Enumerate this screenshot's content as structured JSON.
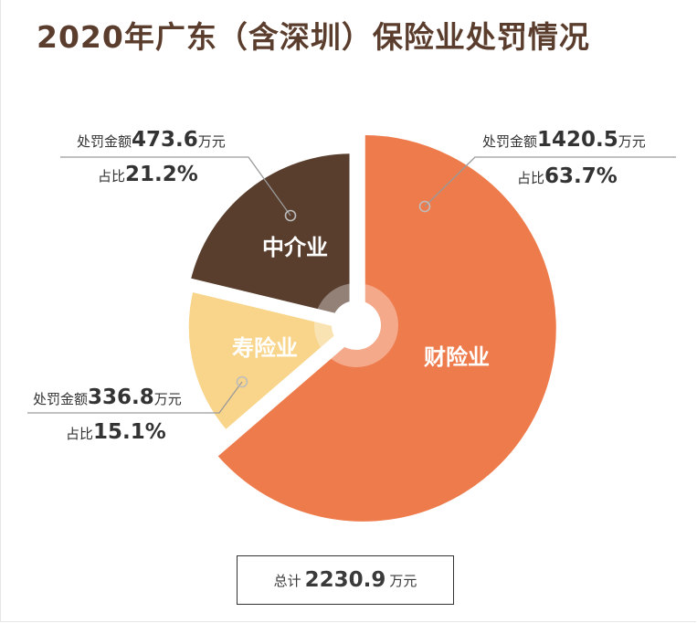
{
  "title": "2020年广东（含深圳）保险业处罚情况",
  "chart_data": {
    "type": "pie",
    "unit": "万元",
    "slices": [
      {
        "name": "财险业",
        "value": 1420.5,
        "share": "63.7%",
        "color": "#ee7b4c"
      },
      {
        "name": "寿险业",
        "value": 336.8,
        "share": "15.1%",
        "color": "#f8d58a"
      },
      {
        "name": "中介业",
        "value": 473.6,
        "share": "21.2%",
        "color": "#593e2e"
      }
    ],
    "total": 2230.9
  },
  "annotations": {
    "amount_prefix": "处罚金额",
    "share_prefix": "占比",
    "unit": "万元",
    "property": {
      "amount": "1420.5",
      "share": "63.7%"
    },
    "life": {
      "amount": "336.8",
      "share": "15.1%"
    },
    "agency": {
      "amount": "473.6",
      "share": "21.2%"
    }
  },
  "total_box": {
    "prefix": "总计",
    "value": "2230.9",
    "unit": "万元"
  }
}
